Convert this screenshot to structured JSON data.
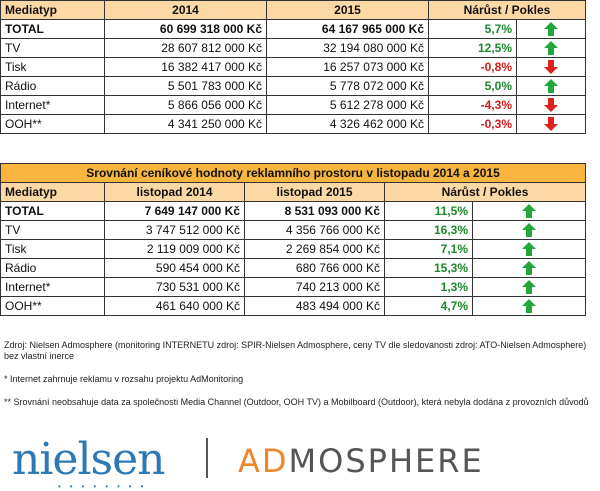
{
  "table1": {
    "headers": [
      "Mediatyp",
      "2014",
      "2015",
      "Nárůst / Pokles"
    ],
    "rows": [
      {
        "label": "TOTAL",
        "a": "60 699 318 000 Kč",
        "b": "64 167 965 000 Kč",
        "change": "5,7%",
        "dir": "up"
      },
      {
        "label": "TV",
        "a": "28 607 812 000 Kč",
        "b": "32 194 080 000 Kč",
        "change": "12,5%",
        "dir": "up"
      },
      {
        "label": "Tisk",
        "a": "16 382 417 000 Kč",
        "b": "16 257 073 000 Kč",
        "change": "-0,8%",
        "dir": "down"
      },
      {
        "label": "Rádio",
        "a": "5 501 783 000 Kč",
        "b": "5 778 072 000 Kč",
        "change": "5,0%",
        "dir": "up"
      },
      {
        "label": "Internet*",
        "a": "5 866 056 000 Kč",
        "b": "5 612 278 000 Kč",
        "change": "-4,3%",
        "dir": "down"
      },
      {
        "label": "OOH**",
        "a": "4 341 250 000 Kč",
        "b": "4 326 462 000 Kč",
        "change": "-0,3%",
        "dir": "down"
      }
    ]
  },
  "table2": {
    "title": "Srovnání ceníkové hodnoty reklamního prostoru v listopadu 2014 a 2015",
    "headers": [
      "Mediatyp",
      "listopad 2014",
      "listopad 2015",
      "Nárůst / Pokles"
    ],
    "rows": [
      {
        "label": "TOTAL",
        "a": "7 649 147 000 Kč",
        "b": "8 531 093 000 Kč",
        "change": "11,5%",
        "dir": "up"
      },
      {
        "label": "TV",
        "a": "3 747 512 000 Kč",
        "b": "4 356 766 000 Kč",
        "change": "16,3%",
        "dir": "up"
      },
      {
        "label": "Tisk",
        "a": "2 119 009 000 Kč",
        "b": "2 269 854 000 Kč",
        "change": "7,1%",
        "dir": "up"
      },
      {
        "label": "Rádio",
        "a": "590 454 000 Kč",
        "b": "680 766 000 Kč",
        "change": "15,3%",
        "dir": "up"
      },
      {
        "label": "Internet*",
        "a": "730 531 000 Kč",
        "b": "740 213 000 Kč",
        "change": "1,3%",
        "dir": "up"
      },
      {
        "label": "OOH**",
        "a": "461 640 000 Kč",
        "b": "483 494 000 Kč",
        "change": "4,7%",
        "dir": "up"
      }
    ]
  },
  "notes": {
    "source": "Zdroj: Nielsen Admosphere (monitoring INTERNETU zdroj: SPIR-Nielsen Admosphere, ceny TV dle sledovanosti zdroj: ATO-Nielsen Admosphere) bez vlastní inerce",
    "internet": "* Internet zahrnuje reklamu v rozsahu projektu AdMonitoring",
    "ooh": "** Srovnání neobsahuje data za společnosti Media Channel (Outdoor, OOH TV) a Mobilboard (Outdoor), která nebyla dodána z provozních důvodů"
  },
  "logo": {
    "left": "nielsen",
    "right_a": "A",
    "right_d": "D",
    "right_rest": "MOSPHERE"
  },
  "colors": {
    "up": "#22a83a",
    "down": "#e0201b",
    "header": "#fcd8a6",
    "title": "#f8b53f"
  },
  "icons": {
    "up": "arrow-up-icon",
    "down": "arrow-down-icon"
  }
}
